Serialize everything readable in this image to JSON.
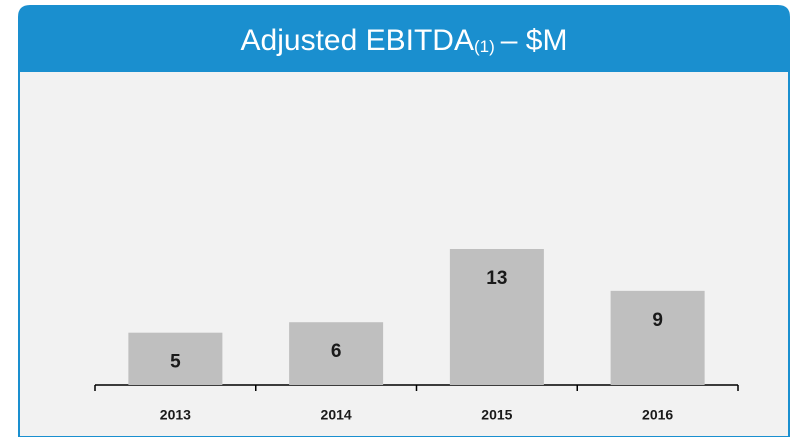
{
  "chart_data": {
    "type": "bar",
    "title_parts": [
      "Adjusted EBITDA",
      "(1)",
      "– $M"
    ],
    "categories": [
      "2013",
      "2014",
      "2015",
      "2016"
    ],
    "values": [
      5,
      6,
      13,
      9
    ],
    "color": "#bfbfbf",
    "header_color": "#1a8fcf"
  }
}
